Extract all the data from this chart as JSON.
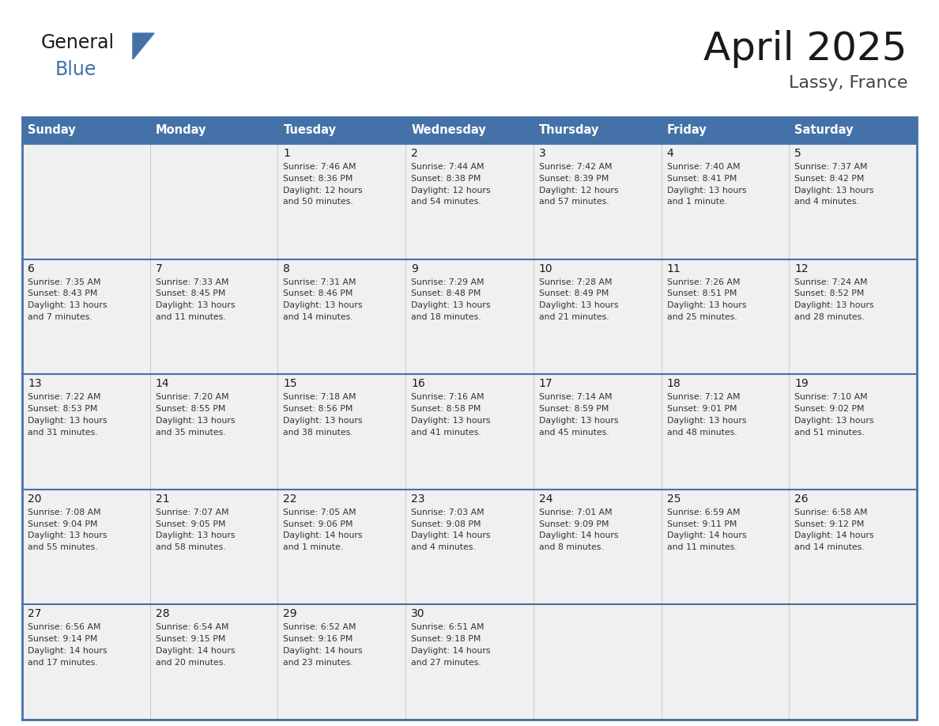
{
  "title": "April 2025",
  "subtitle": "Lassy, France",
  "header_color": "#4472a8",
  "header_text_color": "#ffffff",
  "cell_bg_color": "#f0f0f0",
  "border_color": "#4472a8",
  "divider_color": "#4472a8",
  "vert_divider_color": "#cccccc",
  "text_color": "#333333",
  "days_of_week": [
    "Sunday",
    "Monday",
    "Tuesday",
    "Wednesday",
    "Thursday",
    "Friday",
    "Saturday"
  ],
  "calendar": [
    [
      {
        "day": "",
        "sunrise": "",
        "sunset": "",
        "daylight": ""
      },
      {
        "day": "",
        "sunrise": "",
        "sunset": "",
        "daylight": ""
      },
      {
        "day": "1",
        "sunrise": "Sunrise: 7:46 AM",
        "sunset": "Sunset: 8:36 PM",
        "daylight": "Daylight: 12 hours\nand 50 minutes."
      },
      {
        "day": "2",
        "sunrise": "Sunrise: 7:44 AM",
        "sunset": "Sunset: 8:38 PM",
        "daylight": "Daylight: 12 hours\nand 54 minutes."
      },
      {
        "day": "3",
        "sunrise": "Sunrise: 7:42 AM",
        "sunset": "Sunset: 8:39 PM",
        "daylight": "Daylight: 12 hours\nand 57 minutes."
      },
      {
        "day": "4",
        "sunrise": "Sunrise: 7:40 AM",
        "sunset": "Sunset: 8:41 PM",
        "daylight": "Daylight: 13 hours\nand 1 minute."
      },
      {
        "day": "5",
        "sunrise": "Sunrise: 7:37 AM",
        "sunset": "Sunset: 8:42 PM",
        "daylight": "Daylight: 13 hours\nand 4 minutes."
      }
    ],
    [
      {
        "day": "6",
        "sunrise": "Sunrise: 7:35 AM",
        "sunset": "Sunset: 8:43 PM",
        "daylight": "Daylight: 13 hours\nand 7 minutes."
      },
      {
        "day": "7",
        "sunrise": "Sunrise: 7:33 AM",
        "sunset": "Sunset: 8:45 PM",
        "daylight": "Daylight: 13 hours\nand 11 minutes."
      },
      {
        "day": "8",
        "sunrise": "Sunrise: 7:31 AM",
        "sunset": "Sunset: 8:46 PM",
        "daylight": "Daylight: 13 hours\nand 14 minutes."
      },
      {
        "day": "9",
        "sunrise": "Sunrise: 7:29 AM",
        "sunset": "Sunset: 8:48 PM",
        "daylight": "Daylight: 13 hours\nand 18 minutes."
      },
      {
        "day": "10",
        "sunrise": "Sunrise: 7:28 AM",
        "sunset": "Sunset: 8:49 PM",
        "daylight": "Daylight: 13 hours\nand 21 minutes."
      },
      {
        "day": "11",
        "sunrise": "Sunrise: 7:26 AM",
        "sunset": "Sunset: 8:51 PM",
        "daylight": "Daylight: 13 hours\nand 25 minutes."
      },
      {
        "day": "12",
        "sunrise": "Sunrise: 7:24 AM",
        "sunset": "Sunset: 8:52 PM",
        "daylight": "Daylight: 13 hours\nand 28 minutes."
      }
    ],
    [
      {
        "day": "13",
        "sunrise": "Sunrise: 7:22 AM",
        "sunset": "Sunset: 8:53 PM",
        "daylight": "Daylight: 13 hours\nand 31 minutes."
      },
      {
        "day": "14",
        "sunrise": "Sunrise: 7:20 AM",
        "sunset": "Sunset: 8:55 PM",
        "daylight": "Daylight: 13 hours\nand 35 minutes."
      },
      {
        "day": "15",
        "sunrise": "Sunrise: 7:18 AM",
        "sunset": "Sunset: 8:56 PM",
        "daylight": "Daylight: 13 hours\nand 38 minutes."
      },
      {
        "day": "16",
        "sunrise": "Sunrise: 7:16 AM",
        "sunset": "Sunset: 8:58 PM",
        "daylight": "Daylight: 13 hours\nand 41 minutes."
      },
      {
        "day": "17",
        "sunrise": "Sunrise: 7:14 AM",
        "sunset": "Sunset: 8:59 PM",
        "daylight": "Daylight: 13 hours\nand 45 minutes."
      },
      {
        "day": "18",
        "sunrise": "Sunrise: 7:12 AM",
        "sunset": "Sunset: 9:01 PM",
        "daylight": "Daylight: 13 hours\nand 48 minutes."
      },
      {
        "day": "19",
        "sunrise": "Sunrise: 7:10 AM",
        "sunset": "Sunset: 9:02 PM",
        "daylight": "Daylight: 13 hours\nand 51 minutes."
      }
    ],
    [
      {
        "day": "20",
        "sunrise": "Sunrise: 7:08 AM",
        "sunset": "Sunset: 9:04 PM",
        "daylight": "Daylight: 13 hours\nand 55 minutes."
      },
      {
        "day": "21",
        "sunrise": "Sunrise: 7:07 AM",
        "sunset": "Sunset: 9:05 PM",
        "daylight": "Daylight: 13 hours\nand 58 minutes."
      },
      {
        "day": "22",
        "sunrise": "Sunrise: 7:05 AM",
        "sunset": "Sunset: 9:06 PM",
        "daylight": "Daylight: 14 hours\nand 1 minute."
      },
      {
        "day": "23",
        "sunrise": "Sunrise: 7:03 AM",
        "sunset": "Sunset: 9:08 PM",
        "daylight": "Daylight: 14 hours\nand 4 minutes."
      },
      {
        "day": "24",
        "sunrise": "Sunrise: 7:01 AM",
        "sunset": "Sunset: 9:09 PM",
        "daylight": "Daylight: 14 hours\nand 8 minutes."
      },
      {
        "day": "25",
        "sunrise": "Sunrise: 6:59 AM",
        "sunset": "Sunset: 9:11 PM",
        "daylight": "Daylight: 14 hours\nand 11 minutes."
      },
      {
        "day": "26",
        "sunrise": "Sunrise: 6:58 AM",
        "sunset": "Sunset: 9:12 PM",
        "daylight": "Daylight: 14 hours\nand 14 minutes."
      }
    ],
    [
      {
        "day": "27",
        "sunrise": "Sunrise: 6:56 AM",
        "sunset": "Sunset: 9:14 PM",
        "daylight": "Daylight: 14 hours\nand 17 minutes."
      },
      {
        "day": "28",
        "sunrise": "Sunrise: 6:54 AM",
        "sunset": "Sunset: 9:15 PM",
        "daylight": "Daylight: 14 hours\nand 20 minutes."
      },
      {
        "day": "29",
        "sunrise": "Sunrise: 6:52 AM",
        "sunset": "Sunset: 9:16 PM",
        "daylight": "Daylight: 14 hours\nand 23 minutes."
      },
      {
        "day": "30",
        "sunrise": "Sunrise: 6:51 AM",
        "sunset": "Sunset: 9:18 PM",
        "daylight": "Daylight: 14 hours\nand 27 minutes."
      },
      {
        "day": "",
        "sunrise": "",
        "sunset": "",
        "daylight": ""
      },
      {
        "day": "",
        "sunrise": "",
        "sunset": "",
        "daylight": ""
      },
      {
        "day": "",
        "sunrise": "",
        "sunset": "",
        "daylight": ""
      }
    ]
  ],
  "logo_text_general": "General",
  "logo_text_blue": "Blue",
  "logo_triangle_color": "#4472a8",
  "fig_width": 11.88,
  "fig_height": 9.18,
  "dpi": 100
}
